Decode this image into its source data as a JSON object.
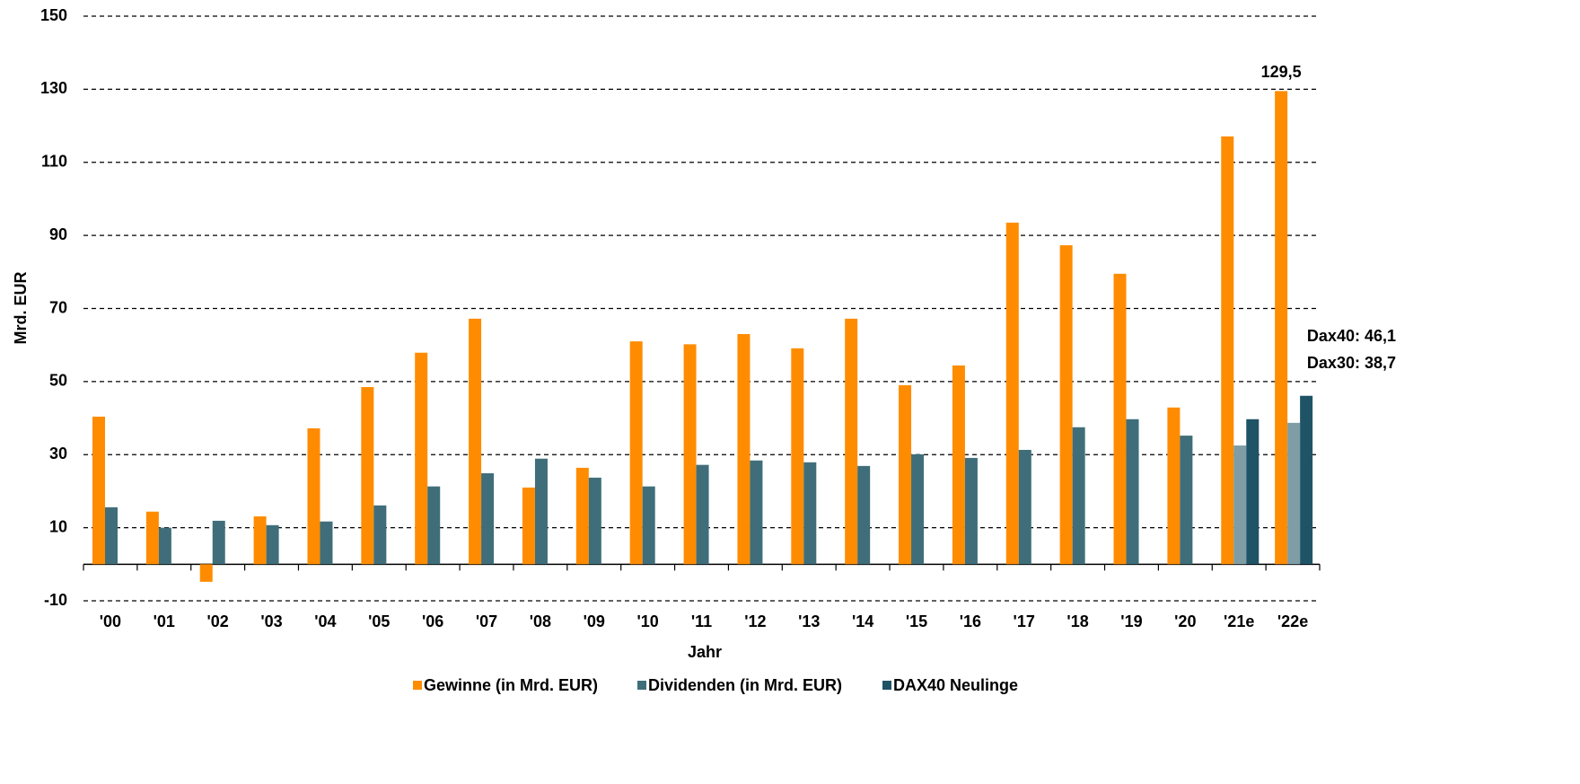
{
  "chart_data": {
    "type": "bar",
    "y_label": "Mrd. EUR",
    "x_label": "Jahr",
    "categories": [
      "'00",
      "'01",
      "'02",
      "'03",
      "'04",
      "'05",
      "'06",
      "'07",
      "'08",
      "'09",
      "'10",
      "'11",
      "'12",
      "'13",
      "'14",
      "'15",
      "'16",
      "'17",
      "'18",
      "'19",
      "'20",
      "'21e",
      "'22e"
    ],
    "series": [
      {
        "name": "Gewinne (in Mrd. EUR)",
        "color": "#ff8c00",
        "values": [
          40.4,
          14.4,
          -4.8,
          13.1,
          37.2,
          48.5,
          57.9,
          67.2,
          21,
          26.4,
          61,
          60.2,
          63,
          59.1,
          67.2,
          49,
          54.4,
          93.5,
          87.3,
          79.5,
          42.9,
          117.1,
          129.5
        ],
        "value_labels": [
          null,
          null,
          null,
          null,
          null,
          null,
          null,
          null,
          null,
          null,
          null,
          null,
          null,
          null,
          null,
          null,
          null,
          null,
          null,
          null,
          null,
          null,
          "129,5"
        ]
      },
      {
        "name": "Dividenden (in Mrd. EUR)",
        "color": "#3f6e7a",
        "colors": [
          "#3f6e7a",
          "#3f6e7a",
          "#3f6e7a",
          "#3f6e7a",
          "#3f6e7a",
          "#3f6e7a",
          "#3f6e7a",
          "#3f6e7a",
          "#3f6e7a",
          "#3f6e7a",
          "#3f6e7a",
          "#3f6e7a",
          "#3f6e7a",
          "#3f6e7a",
          "#3f6e7a",
          "#3f6e7a",
          "#3f6e7a",
          "#3f6e7a",
          "#3f6e7a",
          "#3f6e7a",
          "#3f6e7a",
          "#7f9da4",
          "#7f9da4"
        ],
        "values": [
          15.6,
          10,
          11.9,
          10.7,
          11.7,
          16.1,
          21.3,
          24.9,
          28.9,
          23.7,
          21.3,
          27.2,
          28.4,
          27.9,
          26.9,
          30.1,
          29.1,
          31.3,
          37.5,
          39.7,
          35.2,
          32.5,
          38.7
        ],
        "value_labels": [
          null,
          null,
          null,
          null,
          null,
          null,
          null,
          null,
          null,
          null,
          null,
          null,
          null,
          null,
          null,
          null,
          null,
          null,
          null,
          null,
          null,
          null,
          "Dax30: 38,7"
        ]
      },
      {
        "name": "DAX40 Neulinge",
        "color": "#1f5366",
        "values": [
          null,
          null,
          null,
          null,
          null,
          null,
          null,
          null,
          null,
          null,
          null,
          null,
          null,
          null,
          null,
          null,
          null,
          null,
          null,
          null,
          null,
          39.7,
          46.1
        ],
        "value_labels": [
          null,
          null,
          null,
          null,
          null,
          null,
          null,
          null,
          null,
          null,
          null,
          null,
          null,
          null,
          null,
          null,
          null,
          null,
          null,
          null,
          null,
          null,
          "Dax40: 46,1"
        ]
      }
    ],
    "ylim": [
      -10,
      150
    ],
    "yticks": [
      -10,
      10,
      30,
      50,
      70,
      90,
      110,
      130,
      150
    ],
    "grid": true,
    "legend": "bottom"
  }
}
